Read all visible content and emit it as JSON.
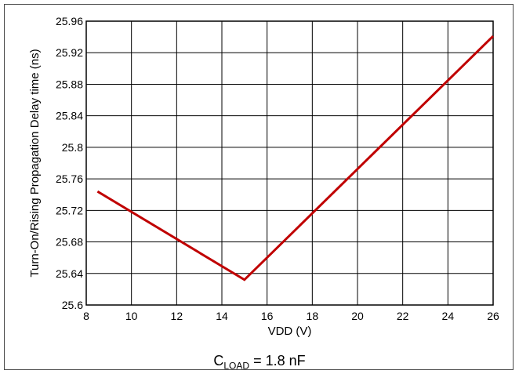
{
  "chart_data": {
    "type": "line",
    "xlabel": "VDD (V)",
    "ylabel": "Turn-On/Rising Propagation Delay time (ns)",
    "xlim": [
      8,
      26
    ],
    "ylim": [
      25.6,
      25.96
    ],
    "x_ticks": [
      "8",
      "10",
      "12",
      "14",
      "16",
      "18",
      "20",
      "22",
      "24",
      "26"
    ],
    "y_ticks": [
      "25.6",
      "25.64",
      "25.68",
      "25.72",
      "25.76",
      "25.8",
      "25.84",
      "25.88",
      "25.92",
      "25.96"
    ],
    "grid": true,
    "series": [
      {
        "color": "#c00000",
        "x": [
          8.5,
          15,
          26
        ],
        "y": [
          25.744,
          25.632,
          25.941
        ]
      }
    ]
  },
  "caption": {
    "main": "C",
    "sub": "LOAD",
    "rest": " = 1.8 nF"
  }
}
